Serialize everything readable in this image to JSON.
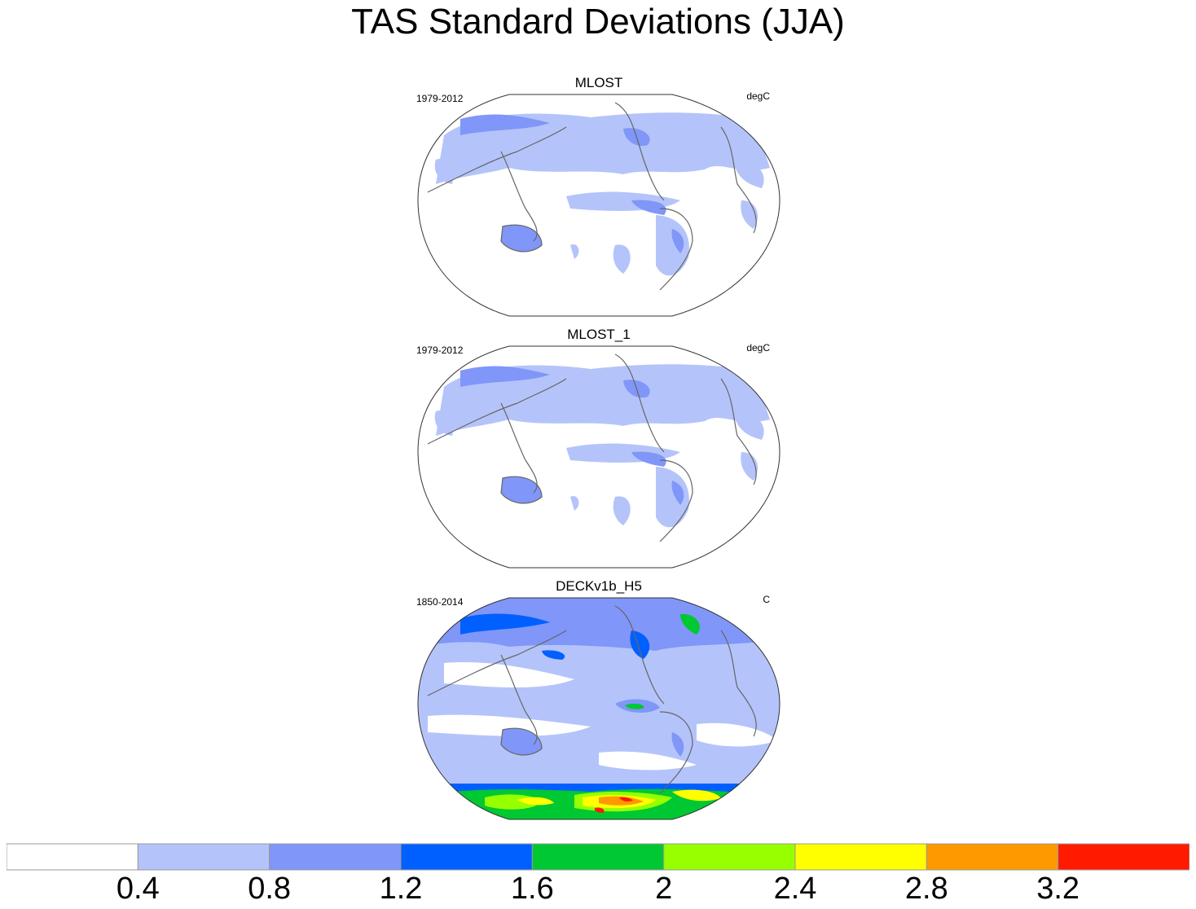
{
  "title": "TAS Standard Deviations (JJA)",
  "chart_data": [
    {
      "type": "heatmap",
      "title": "MLOST",
      "left_string": "1979-2012",
      "right_string": "degC",
      "projection": "Winkel tripel (Pacific-centered world map)"
    },
    {
      "type": "heatmap",
      "title": "MLOST_1",
      "left_string": "1979-2012",
      "right_string": "degC",
      "projection": "Winkel tripel (Pacific-centered world map)"
    },
    {
      "type": "heatmap",
      "title": "DECKv1b_H5",
      "left_string": "1850-2014",
      "right_string": "C",
      "projection": "Winkel tripel (Pacific-centered world map)"
    }
  ],
  "colorbar": {
    "levels": [
      "0.4",
      "0.8",
      "1.2",
      "1.6",
      "2",
      "2.4",
      "2.8",
      "3.2"
    ],
    "colors": [
      "#ffffff",
      "#b4c4fa",
      "#8096f8",
      "#0060ff",
      "#00c832",
      "#96ff00",
      "#ffff00",
      "#ff9900",
      "#ff1a00"
    ]
  }
}
